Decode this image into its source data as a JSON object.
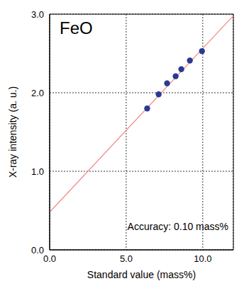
{
  "chart_data": {
    "type": "scatter",
    "title": "FeO",
    "x_label": "Standard value (mass%)",
    "y_label": "X-ray intensity (a. u.)",
    "annotations": [
      "Accuracy: 0.10 mass%"
    ],
    "xlim": [
      0,
      12
    ],
    "ylim": [
      0,
      3
    ],
    "xticks": [
      {
        "value": 0,
        "label": "0.0"
      },
      {
        "value": 5,
        "label": "5.0"
      },
      {
        "value": 10,
        "label": "10.0"
      }
    ],
    "yticks": [
      {
        "value": 0,
        "label": "0.0"
      },
      {
        "value": 1,
        "label": "1.0"
      },
      {
        "value": 2,
        "label": "2.0"
      },
      {
        "value": 3,
        "label": "3.0"
      }
    ],
    "grid": true,
    "series": [
      {
        "type": "line",
        "color": "#f08a8a",
        "line_style": "solid",
        "x": [
          0,
          12
        ],
        "values": [
          0.48,
          2.98
        ]
      },
      {
        "type": "scatter",
        "color": "#2b3990",
        "marker": "circle",
        "x": [
          6.37,
          7.12,
          7.67,
          8.23,
          8.6,
          9.16,
          9.95
        ],
        "values": [
          1.8,
          1.98,
          2.12,
          2.21,
          2.3,
          2.41,
          2.53
        ]
      }
    ]
  }
}
